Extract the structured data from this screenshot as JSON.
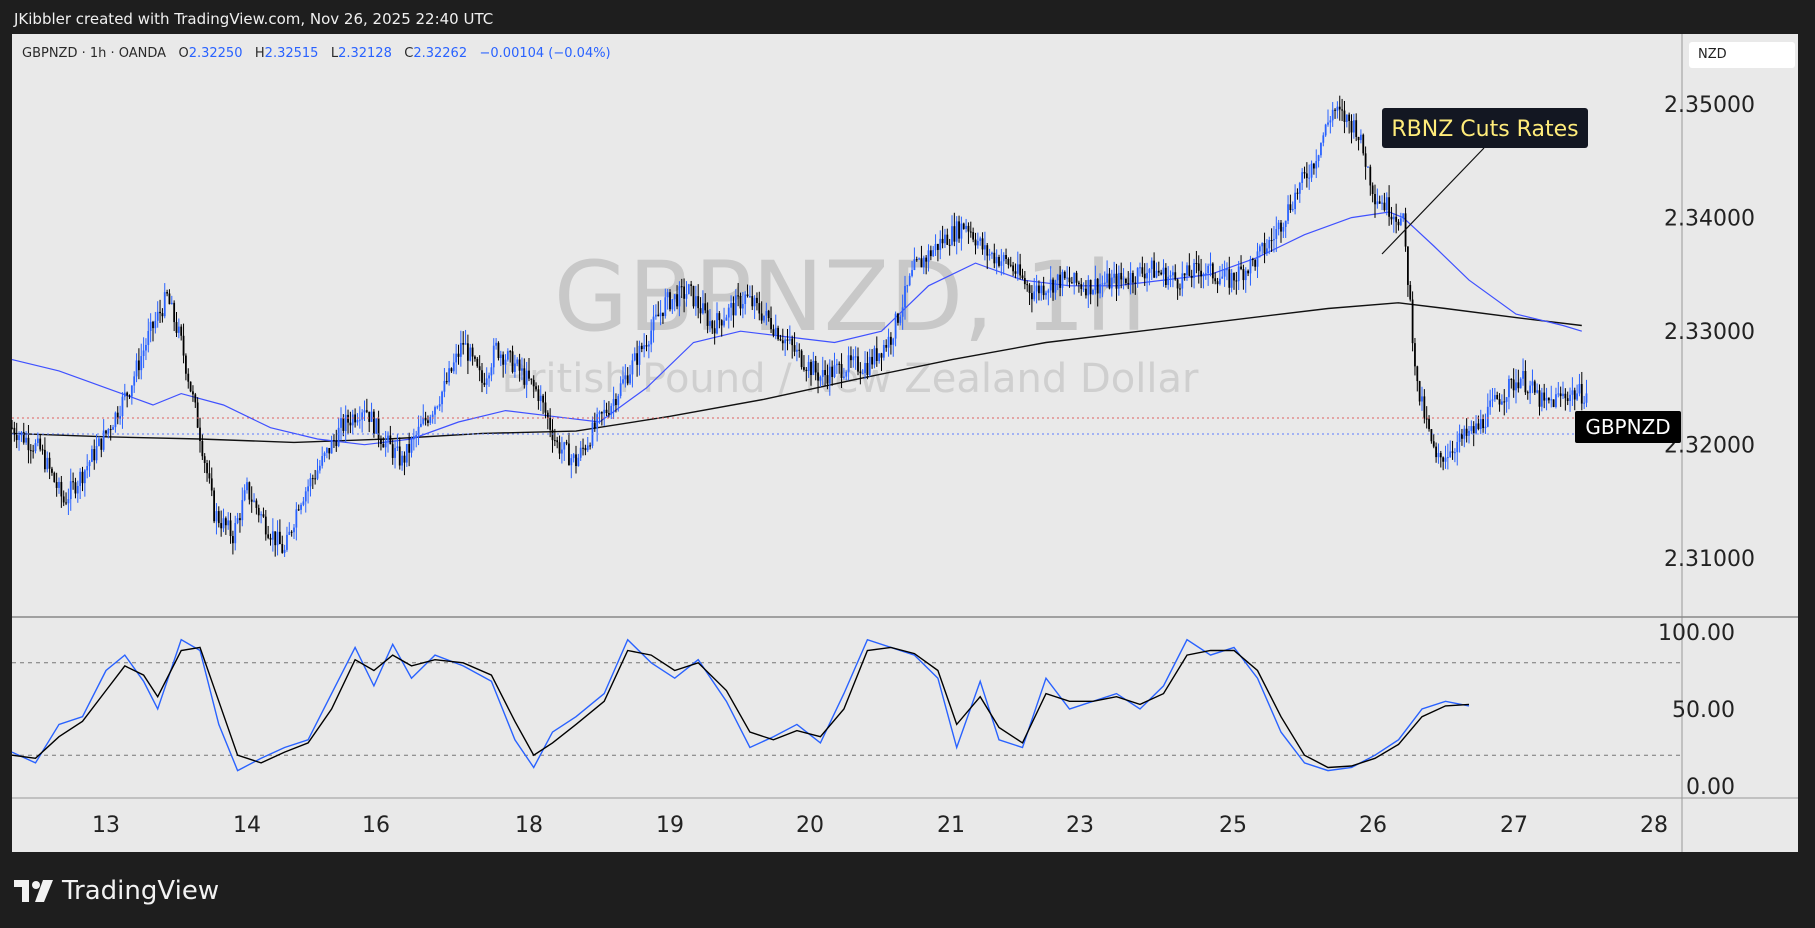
{
  "header": {
    "attribution": "JKibbler created with TradingView.com, Nov 26, 2025 22:40 UTC"
  },
  "ohlc": {
    "symbol_line": "GBPNZD · 1h · OANDA",
    "o_label": "O",
    "o": "2.32250",
    "h_label": "H",
    "h": "2.32515",
    "l_label": "L",
    "l": "2.32128",
    "c_label": "C",
    "c": "2.32262",
    "change": "−0.00104 (−0.04%)"
  },
  "currency_label": "NZD",
  "watermark": {
    "symbol": "GBPNZD, 1h",
    "description": "British Pound / New Zealand Dollar"
  },
  "annotation": {
    "text": "RBNZ Cuts Rates"
  },
  "price_tag": {
    "text": "GBPNZD"
  },
  "branding": {
    "name": "TradingView"
  },
  "colors": {
    "background": "#e9e9e9",
    "bull": "#2962ff",
    "bear": "#000000",
    "ma_fast": "#3f51ff",
    "ma_slow": "#111111",
    "stoch_k": "#2962ff",
    "stoch_d": "#000000"
  },
  "chart_data": [
    {
      "type": "candlestick",
      "title": "GBPNZD · 1h · OANDA",
      "ylim": [
        2.305,
        2.356
      ],
      "y_ticks": [
        "2.35000",
        "2.34000",
        "2.33000",
        "2.32000",
        "2.31000"
      ],
      "x_ticks": [
        "13",
        "14",
        "16",
        "18",
        "19",
        "20",
        "21",
        "23",
        "25",
        "26",
        "27",
        "28"
      ],
      "close_path": [
        [
          0,
          2.3215
        ],
        [
          12,
          2.3195
        ],
        [
          22,
          2.315
        ],
        [
          30,
          2.3175
        ],
        [
          40,
          2.321
        ],
        [
          50,
          2.325
        ],
        [
          58,
          2.3295
        ],
        [
          66,
          2.333
        ],
        [
          72,
          2.329
        ],
        [
          80,
          2.321
        ],
        [
          86,
          2.314
        ],
        [
          94,
          2.312
        ],
        [
          100,
          2.316
        ],
        [
          108,
          2.313
        ],
        [
          116,
          2.3105
        ],
        [
          122,
          2.315
        ],
        [
          132,
          2.3185
        ],
        [
          140,
          2.3215
        ],
        [
          150,
          2.3235
        ],
        [
          156,
          2.321
        ],
        [
          166,
          2.3185
        ],
        [
          174,
          2.3215
        ],
        [
          184,
          2.325
        ],
        [
          192,
          2.329
        ],
        [
          200,
          2.3255
        ],
        [
          206,
          2.3285
        ],
        [
          214,
          2.327
        ],
        [
          224,
          2.3245
        ],
        [
          232,
          2.32
        ],
        [
          240,
          2.3185
        ],
        [
          248,
          2.3215
        ],
        [
          256,
          2.324
        ],
        [
          268,
          2.3285
        ],
        [
          278,
          2.3325
        ],
        [
          288,
          2.3335
        ],
        [
          298,
          2.3305
        ],
        [
          312,
          2.333
        ],
        [
          322,
          2.331
        ],
        [
          334,
          2.328
        ],
        [
          344,
          2.326
        ],
        [
          356,
          2.327
        ],
        [
          364,
          2.327
        ],
        [
          374,
          2.3295
        ],
        [
          384,
          2.3355
        ],
        [
          396,
          2.338
        ],
        [
          406,
          2.3395
        ],
        [
          414,
          2.337
        ],
        [
          424,
          2.336
        ],
        [
          434,
          2.3335
        ],
        [
          446,
          2.3345
        ],
        [
          458,
          2.334
        ],
        [
          472,
          2.3345
        ],
        [
          484,
          2.3355
        ],
        [
          496,
          2.3345
        ],
        [
          506,
          2.3355
        ],
        [
          518,
          2.3345
        ],
        [
          528,
          2.336
        ],
        [
          536,
          2.338
        ],
        [
          546,
          2.342
        ],
        [
          554,
          2.345
        ],
        [
          562,
          2.3495
        ],
        [
          572,
          2.348
        ],
        [
          580,
          2.342
        ],
        [
          588,
          2.3405
        ],
        [
          592,
          2.3395
        ],
        [
          598,
          2.325
        ],
        [
          606,
          2.3185
        ],
        [
          614,
          2.32
        ],
        [
          624,
          2.3215
        ],
        [
          632,
          2.324
        ],
        [
          642,
          2.326
        ],
        [
          652,
          2.3235
        ],
        [
          662,
          2.3245
        ],
        [
          670,
          2.3245
        ]
      ],
      "ma_fast": [
        [
          0,
          2.3275
        ],
        [
          20,
          2.3265
        ],
        [
          40,
          2.325
        ],
        [
          60,
          2.3235
        ],
        [
          72,
          2.3245
        ],
        [
          90,
          2.3235
        ],
        [
          110,
          2.3215
        ],
        [
          130,
          2.3205
        ],
        [
          150,
          2.32
        ],
        [
          170,
          2.3205
        ],
        [
          190,
          2.322
        ],
        [
          210,
          2.323
        ],
        [
          230,
          2.3225
        ],
        [
          250,
          2.322
        ],
        [
          270,
          2.325
        ],
        [
          290,
          2.329
        ],
        [
          310,
          2.33
        ],
        [
          330,
          2.3295
        ],
        [
          350,
          2.329
        ],
        [
          370,
          2.33
        ],
        [
          390,
          2.334
        ],
        [
          410,
          2.336
        ],
        [
          430,
          2.3345
        ],
        [
          450,
          2.334
        ],
        [
          470,
          2.334
        ],
        [
          490,
          2.3345
        ],
        [
          510,
          2.335
        ],
        [
          530,
          2.3365
        ],
        [
          550,
          2.3385
        ],
        [
          570,
          2.34
        ],
        [
          586,
          2.3405
        ],
        [
          592,
          2.34
        ],
        [
          605,
          2.3375
        ],
        [
          620,
          2.3345
        ],
        [
          640,
          2.3315
        ],
        [
          660,
          2.3305
        ],
        [
          668,
          2.33
        ]
      ],
      "ma_slow": [
        [
          0,
          2.321
        ],
        [
          40,
          2.3207
        ],
        [
          80,
          2.3205
        ],
        [
          120,
          2.3202
        ],
        [
          160,
          2.3205
        ],
        [
          200,
          2.321
        ],
        [
          240,
          2.3212
        ],
        [
          280,
          2.3225
        ],
        [
          320,
          2.324
        ],
        [
          360,
          2.3258
        ],
        [
          400,
          2.3275
        ],
        [
          440,
          2.329
        ],
        [
          480,
          2.33
        ],
        [
          520,
          2.331
        ],
        [
          560,
          2.332
        ],
        [
          590,
          2.3325
        ],
        [
          610,
          2.332
        ],
        [
          640,
          2.3312
        ],
        [
          668,
          2.3305
        ]
      ],
      "annotation_anchor": [
        592,
        2.34
      ]
    },
    {
      "type": "line",
      "title": "",
      "ylim": [
        0,
        100
      ],
      "y_ticks": [
        "100.00",
        "50.00",
        "0.00"
      ],
      "levels": [
        80,
        20
      ],
      "series": [
        {
          "name": "",
          "values": [
            [
              0,
              22
            ],
            [
              10,
              15
            ],
            [
              20,
              40
            ],
            [
              30,
              45
            ],
            [
              40,
              75
            ],
            [
              48,
              85
            ],
            [
              56,
              68
            ],
            [
              62,
              50
            ],
            [
              72,
              95
            ],
            [
              80,
              88
            ],
            [
              88,
              40
            ],
            [
              96,
              10
            ],
            [
              106,
              18
            ],
            [
              116,
              25
            ],
            [
              126,
              30
            ],
            [
              136,
              60
            ],
            [
              146,
              90
            ],
            [
              154,
              65
            ],
            [
              162,
              92
            ],
            [
              170,
              70
            ],
            [
              180,
              85
            ],
            [
              192,
              78
            ],
            [
              204,
              68
            ],
            [
              214,
              30
            ],
            [
              222,
              12
            ],
            [
              230,
              35
            ],
            [
              240,
              45
            ],
            [
              252,
              60
            ],
            [
              262,
              95
            ],
            [
              272,
              80
            ],
            [
              282,
              70
            ],
            [
              292,
              82
            ],
            [
              304,
              55
            ],
            [
              314,
              25
            ],
            [
              324,
              32
            ],
            [
              334,
              40
            ],
            [
              344,
              28
            ],
            [
              354,
              60
            ],
            [
              364,
              95
            ],
            [
              374,
              90
            ],
            [
              384,
              85
            ],
            [
              394,
              70
            ],
            [
              402,
              25
            ],
            [
              412,
              68
            ],
            [
              420,
              30
            ],
            [
              430,
              25
            ],
            [
              440,
              70
            ],
            [
              450,
              50
            ],
            [
              460,
              55
            ],
            [
              470,
              60
            ],
            [
              480,
              50
            ],
            [
              490,
              65
            ],
            [
              500,
              95
            ],
            [
              510,
              85
            ],
            [
              520,
              90
            ],
            [
              530,
              70
            ],
            [
              540,
              35
            ],
            [
              550,
              15
            ],
            [
              560,
              10
            ],
            [
              570,
              12
            ],
            [
              580,
              20
            ],
            [
              590,
              30
            ],
            [
              600,
              50
            ],
            [
              610,
              55
            ],
            [
              620,
              52
            ]
          ]
        },
        {
          "name": "",
          "values": [
            [
              0,
              20
            ],
            [
              10,
              18
            ],
            [
              20,
              32
            ],
            [
              30,
              42
            ],
            [
              40,
              62
            ],
            [
              48,
              78
            ],
            [
              56,
              72
            ],
            [
              62,
              58
            ],
            [
              72,
              88
            ],
            [
              80,
              90
            ],
            [
              88,
              55
            ],
            [
              96,
              20
            ],
            [
              106,
              15
            ],
            [
              116,
              22
            ],
            [
              126,
              28
            ],
            [
              136,
              50
            ],
            [
              146,
              82
            ],
            [
              154,
              75
            ],
            [
              162,
              85
            ],
            [
              170,
              78
            ],
            [
              180,
              82
            ],
            [
              192,
              80
            ],
            [
              204,
              72
            ],
            [
              214,
              42
            ],
            [
              222,
              20
            ],
            [
              230,
              28
            ],
            [
              240,
              40
            ],
            [
              252,
              55
            ],
            [
              262,
              88
            ],
            [
              272,
              85
            ],
            [
              282,
              75
            ],
            [
              292,
              80
            ],
            [
              304,
              62
            ],
            [
              314,
              35
            ],
            [
              324,
              30
            ],
            [
              334,
              36
            ],
            [
              344,
              32
            ],
            [
              354,
              50
            ],
            [
              364,
              88
            ],
            [
              374,
              90
            ],
            [
              384,
              86
            ],
            [
              394,
              75
            ],
            [
              402,
              40
            ],
            [
              412,
              58
            ],
            [
              420,
              38
            ],
            [
              430,
              28
            ],
            [
              440,
              60
            ],
            [
              450,
              55
            ],
            [
              460,
              55
            ],
            [
              470,
              58
            ],
            [
              480,
              53
            ],
            [
              490,
              60
            ],
            [
              500,
              85
            ],
            [
              510,
              88
            ],
            [
              520,
              88
            ],
            [
              530,
              75
            ],
            [
              540,
              45
            ],
            [
              550,
              20
            ],
            [
              560,
              12
            ],
            [
              570,
              13
            ],
            [
              580,
              18
            ],
            [
              590,
              27
            ],
            [
              600,
              45
            ],
            [
              610,
              52
            ],
            [
              620,
              53
            ]
          ]
        }
      ]
    }
  ]
}
